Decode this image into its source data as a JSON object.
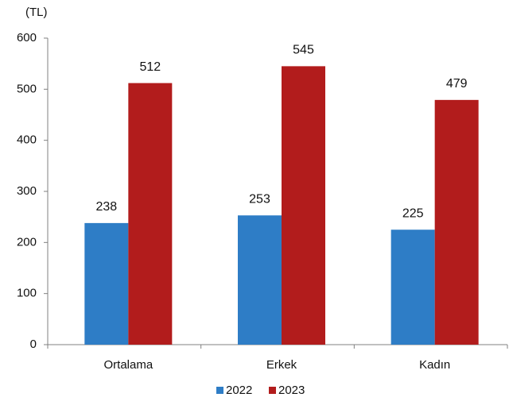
{
  "chart_data": {
    "type": "bar",
    "y_label": "(TL)",
    "categories": [
      "Ortalama",
      "Erkek",
      "Kadın"
    ],
    "series": [
      {
        "name": "2022",
        "color": "#2e7dc6",
        "values": [
          238,
          253,
          225
        ]
      },
      {
        "name": "2023",
        "color": "#b21c1c",
        "values": [
          512,
          545,
          479
        ]
      }
    ],
    "ylim": [
      0,
      600
    ],
    "yticks": [
      0,
      100,
      200,
      300,
      400,
      500,
      600
    ],
    "grid": false,
    "legend": "bottom"
  }
}
